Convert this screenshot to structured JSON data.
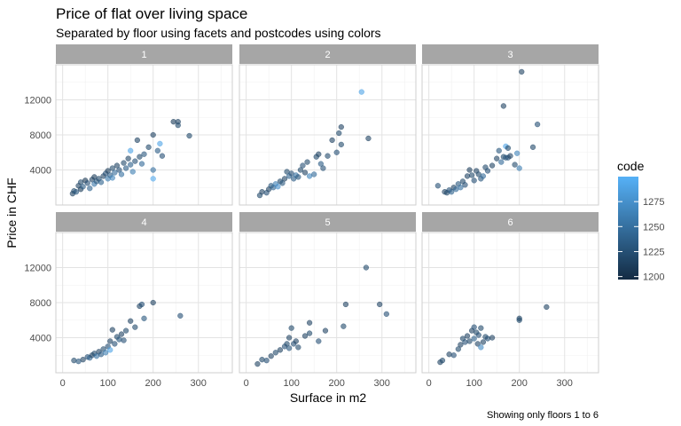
{
  "chart_data": {
    "type": "scatter",
    "title": "Price of flat over living space",
    "subtitle": "Separated by floor using facets and postcodes using colors",
    "xlabel": "Surface in m2",
    "ylabel": "Price in CHF",
    "caption": "Showing only floors 1 to 6",
    "xlim": [
      -15,
      375
    ],
    "ylim": [
      0,
      16000
    ],
    "xticks": [
      0,
      100,
      200,
      300
    ],
    "yticks": [
      4000,
      8000,
      12000
    ],
    "grid": true,
    "facet_var": "floor",
    "color_var": "code",
    "color_scale": {
      "min": 1197,
      "max": 1300,
      "low": "#132B43",
      "high": "#56B1F7"
    },
    "legend": {
      "title": "code",
      "position": "right",
      "ticks": [
        1200,
        1225,
        1250,
        1275
      ]
    },
    "facets": [
      {
        "label": "1",
        "points": [
          [
            22,
            1300,
            1215
          ],
          [
            25,
            1600,
            1220
          ],
          [
            30,
            1500,
            1230
          ],
          [
            35,
            2200,
            1215
          ],
          [
            40,
            1800,
            1210
          ],
          [
            40,
            2600,
            1220
          ],
          [
            45,
            2100,
            1235
          ],
          [
            50,
            2800,
            1205
          ],
          [
            55,
            2500,
            1225
          ],
          [
            60,
            1900,
            1240
          ],
          [
            65,
            2900,
            1215
          ],
          [
            70,
            3200,
            1210
          ],
          [
            70,
            2400,
            1255
          ],
          [
            75,
            2700,
            1230
          ],
          [
            80,
            3000,
            1220
          ],
          [
            85,
            2600,
            1240
          ],
          [
            90,
            3300,
            1215
          ],
          [
            95,
            3600,
            1225
          ],
          [
            100,
            3000,
            1260
          ],
          [
            100,
            3900,
            1210
          ],
          [
            105,
            3400,
            1235
          ],
          [
            110,
            4200,
            1220
          ],
          [
            110,
            3100,
            1265
          ],
          [
            115,
            3700,
            1245
          ],
          [
            120,
            4500,
            1215
          ],
          [
            125,
            4000,
            1225
          ],
          [
            130,
            3500,
            1250
          ],
          [
            135,
            4800,
            1220
          ],
          [
            140,
            4200,
            1235
          ],
          [
            145,
            5300,
            1215
          ],
          [
            150,
            6200,
            1290
          ],
          [
            150,
            4600,
            1240
          ],
          [
            155,
            3800,
            1260
          ],
          [
            160,
            5000,
            1225
          ],
          [
            165,
            7400,
            1215
          ],
          [
            170,
            5500,
            1220
          ],
          [
            175,
            4700,
            1245
          ],
          [
            180,
            5800,
            1230
          ],
          [
            190,
            6600,
            1220
          ],
          [
            200,
            8000,
            1215
          ],
          [
            200,
            3000,
            1295
          ],
          [
            200,
            4000,
            1250
          ],
          [
            210,
            6200,
            1235
          ],
          [
            215,
            7000,
            1290
          ],
          [
            220,
            5600,
            1225
          ],
          [
            245,
            9500,
            1210
          ],
          [
            255,
            9500,
            1215
          ],
          [
            255,
            9100,
            1220
          ],
          [
            280,
            7900,
            1220
          ]
        ]
      },
      {
        "label": "2",
        "points": [
          [
            30,
            1100,
            1220
          ],
          [
            35,
            1500,
            1215
          ],
          [
            45,
            1400,
            1225
          ],
          [
            50,
            1800,
            1215
          ],
          [
            55,
            2200,
            1230
          ],
          [
            60,
            2000,
            1240
          ],
          [
            65,
            2400,
            1260
          ],
          [
            70,
            2100,
            1275
          ],
          [
            75,
            2700,
            1220
          ],
          [
            80,
            2500,
            1230
          ],
          [
            85,
            3000,
            1215
          ],
          [
            90,
            3800,
            1220
          ],
          [
            95,
            3300,
            1240
          ],
          [
            100,
            3600,
            1225
          ],
          [
            105,
            3000,
            1235
          ],
          [
            110,
            3400,
            1250
          ],
          [
            115,
            3200,
            1230
          ],
          [
            120,
            4000,
            1220
          ],
          [
            125,
            4500,
            1225
          ],
          [
            130,
            3700,
            1215
          ],
          [
            135,
            4900,
            1220
          ],
          [
            140,
            3300,
            1265
          ],
          [
            150,
            3500,
            1245
          ],
          [
            155,
            5500,
            1220
          ],
          [
            160,
            5800,
            1215
          ],
          [
            165,
            4700,
            1235
          ],
          [
            170,
            4200,
            1225
          ],
          [
            180,
            5600,
            1220
          ],
          [
            190,
            7400,
            1215
          ],
          [
            200,
            6000,
            1225
          ],
          [
            205,
            8200,
            1220
          ],
          [
            210,
            8900,
            1215
          ],
          [
            210,
            6900,
            1220
          ],
          [
            255,
            12900,
            1290
          ],
          [
            270,
            7600,
            1215
          ]
        ]
      },
      {
        "label": "3",
        "points": [
          [
            20,
            2200,
            1225
          ],
          [
            35,
            1500,
            1215
          ],
          [
            40,
            1400,
            1220
          ],
          [
            45,
            1700,
            1225
          ],
          [
            50,
            1500,
            1240
          ],
          [
            55,
            2000,
            1215
          ],
          [
            60,
            1800,
            1245
          ],
          [
            65,
            2400,
            1230
          ],
          [
            70,
            2000,
            1250
          ],
          [
            75,
            2700,
            1220
          ],
          [
            80,
            2300,
            1225
          ],
          [
            85,
            3300,
            1215
          ],
          [
            90,
            4000,
            1210
          ],
          [
            95,
            3400,
            1220
          ],
          [
            100,
            2800,
            1225
          ],
          [
            105,
            3900,
            1215
          ],
          [
            110,
            3500,
            1220
          ],
          [
            115,
            3000,
            1230
          ],
          [
            120,
            3300,
            1245
          ],
          [
            125,
            4300,
            1220
          ],
          [
            130,
            3900,
            1225
          ],
          [
            140,
            4500,
            1215
          ],
          [
            150,
            5300,
            1215
          ],
          [
            155,
            6200,
            1230
          ],
          [
            160,
            4900,
            1245
          ],
          [
            165,
            5500,
            1220
          ],
          [
            170,
            5400,
            1230
          ],
          [
            170,
            6700,
            1290
          ],
          [
            175,
            6500,
            1220
          ],
          [
            175,
            5400,
            1225
          ],
          [
            180,
            5600,
            1215
          ],
          [
            190,
            4600,
            1220
          ],
          [
            195,
            5900,
            1265
          ],
          [
            200,
            4200,
            1260
          ],
          [
            205,
            15200,
            1215
          ],
          [
            165,
            11300,
            1215
          ],
          [
            230,
            6600,
            1220
          ],
          [
            240,
            9200,
            1225
          ]
        ]
      },
      {
        "label": "4",
        "points": [
          [
            25,
            1400,
            1220
          ],
          [
            35,
            1300,
            1230
          ],
          [
            45,
            1500,
            1215
          ],
          [
            55,
            1800,
            1225
          ],
          [
            60,
            1700,
            1240
          ],
          [
            65,
            2000,
            1215
          ],
          [
            70,
            2200,
            1220
          ],
          [
            75,
            1900,
            1250
          ],
          [
            80,
            2400,
            1215
          ],
          [
            85,
            2100,
            1235
          ],
          [
            90,
            2700,
            1220
          ],
          [
            95,
            2300,
            1260
          ],
          [
            100,
            3000,
            1225
          ],
          [
            105,
            2600,
            1290
          ],
          [
            105,
            3600,
            1215
          ],
          [
            110,
            4900,
            1215
          ],
          [
            115,
            3300,
            1225
          ],
          [
            120,
            4100,
            1220
          ],
          [
            125,
            3800,
            1230
          ],
          [
            130,
            4400,
            1215
          ],
          [
            135,
            3700,
            1225
          ],
          [
            140,
            4800,
            1220
          ],
          [
            150,
            5900,
            1215
          ],
          [
            160,
            5200,
            1220
          ],
          [
            170,
            7600,
            1215
          ],
          [
            175,
            7800,
            1225
          ],
          [
            180,
            6200,
            1230
          ],
          [
            200,
            8000,
            1215
          ],
          [
            260,
            6500,
            1225
          ]
        ]
      },
      {
        "label": "5",
        "points": [
          [
            25,
            1000,
            1215
          ],
          [
            35,
            1500,
            1220
          ],
          [
            45,
            1400,
            1225
          ],
          [
            55,
            1900,
            1215
          ],
          [
            65,
            2300,
            1220
          ],
          [
            75,
            2600,
            1215
          ],
          [
            85,
            3000,
            1225
          ],
          [
            90,
            3300,
            1220
          ],
          [
            95,
            2800,
            1230
          ],
          [
            95,
            4000,
            1215
          ],
          [
            100,
            5100,
            1220
          ],
          [
            105,
            3300,
            1225
          ],
          [
            110,
            3600,
            1215
          ],
          [
            115,
            2900,
            1220
          ],
          [
            130,
            4200,
            1215
          ],
          [
            140,
            4500,
            1220
          ],
          [
            140,
            5700,
            1215
          ],
          [
            160,
            3600,
            1225
          ],
          [
            175,
            4800,
            1215
          ],
          [
            215,
            5300,
            1220
          ],
          [
            220,
            7800,
            1215
          ],
          [
            265,
            12000,
            1220
          ],
          [
            295,
            7800,
            1215
          ],
          [
            310,
            6700,
            1225
          ]
        ]
      },
      {
        "label": "6",
        "points": [
          [
            25,
            1200,
            1215
          ],
          [
            30,
            1400,
            1220
          ],
          [
            45,
            2100,
            1215
          ],
          [
            55,
            2000,
            1225
          ],
          [
            65,
            2700,
            1220
          ],
          [
            70,
            3200,
            1215
          ],
          [
            75,
            3900,
            1220
          ],
          [
            80,
            3500,
            1225
          ],
          [
            85,
            4200,
            1215
          ],
          [
            90,
            3600,
            1220
          ],
          [
            95,
            4800,
            1215
          ],
          [
            100,
            5200,
            1225
          ],
          [
            100,
            3900,
            1240
          ],
          [
            105,
            4600,
            1220
          ],
          [
            108,
            3300,
            1215
          ],
          [
            110,
            4300,
            1225
          ],
          [
            115,
            5100,
            1220
          ],
          [
            115,
            2900,
            1270
          ],
          [
            120,
            3500,
            1215
          ],
          [
            125,
            4100,
            1220
          ],
          [
            130,
            3900,
            1225
          ],
          [
            140,
            4000,
            1215
          ],
          [
            200,
            6200,
            1215
          ],
          [
            200,
            6000,
            1220
          ],
          [
            260,
            7500,
            1215
          ]
        ]
      }
    ]
  }
}
